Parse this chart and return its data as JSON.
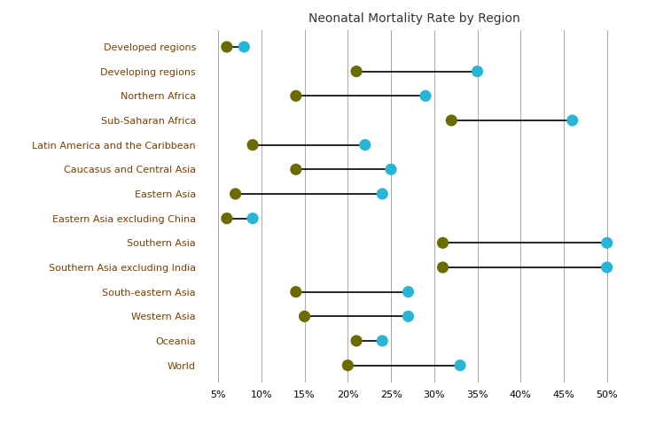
{
  "title": "Neonatal Mortality Rate by Region",
  "regions": [
    "Developed regions",
    "Developing regions",
    "Northern Africa",
    "Sub-Saharan Africa",
    "Latin America and the Caribbean",
    "Caucasus and Central Asia",
    "Eastern Asia",
    "Eastern Asia excluding China",
    "Southern Asia",
    "Southern Asia excluding India",
    "South-eastern Asia",
    "Western Asia",
    "Oceania",
    "World"
  ],
  "val1": [
    0.06,
    0.21,
    0.14,
    0.32,
    0.09,
    0.14,
    0.07,
    0.06,
    0.31,
    0.31,
    0.14,
    0.15,
    0.21,
    0.2
  ],
  "val2": [
    0.08,
    0.35,
    0.29,
    0.46,
    0.22,
    0.25,
    0.24,
    0.09,
    0.5,
    0.5,
    0.27,
    0.27,
    0.24,
    0.33
  ],
  "color1": "#6b6b00",
  "color2": "#29b6d6",
  "dot_size": 90,
  "xlim": [
    0.03,
    0.525
  ],
  "xticks": [
    0.05,
    0.1,
    0.15,
    0.2,
    0.25,
    0.3,
    0.35,
    0.4,
    0.45,
    0.5
  ],
  "title_color": "#333333",
  "label_color": "#7b3f00",
  "background_color": "#ffffff",
  "grid_color": "#aaaaaa",
  "title_fontsize": 10,
  "label_fontsize": 8,
  "xtick_fontsize": 8
}
